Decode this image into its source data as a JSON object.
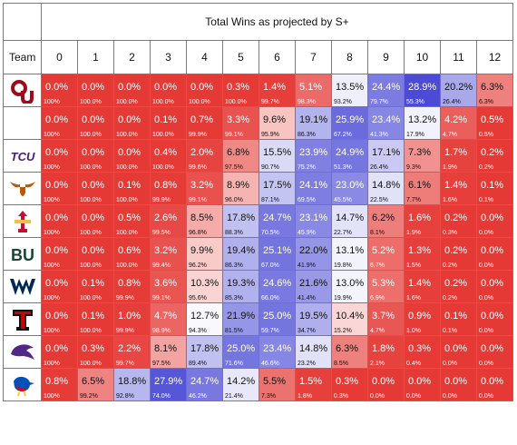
{
  "title": "Total Wins as projected by S+",
  "team_header": "Team",
  "win_columns": [
    "0",
    "1",
    "2",
    "3",
    "4",
    "5",
    "6",
    "7",
    "8",
    "9",
    "10",
    "11",
    "12"
  ],
  "rows": [
    {
      "logo": "oklahoma-ou-logo",
      "logo_text": "OU",
      "pct": [
        "0.0%",
        "0.0%",
        "0.0%",
        "0.0%",
        "0.0%",
        "0.3%",
        "1.4%",
        "5.1%",
        "13.5%",
        "24.4%",
        "28.9%",
        "20.2%",
        "6.3%"
      ],
      "cum": [
        "100%",
        "100.0%",
        "100.0%",
        "100.0%",
        "100.0%",
        "100.0%",
        "99.7%",
        "98.3%",
        "93.2%",
        "79.7%",
        "55.3%",
        "26.4%",
        "6.3%"
      ]
    },
    {
      "logo": "blank-logo",
      "logo_text": "",
      "pct": [
        "0.0%",
        "0.0%",
        "0.0%",
        "0.1%",
        "0.7%",
        "3.3%",
        "9.6%",
        "19.1%",
        "25.9%",
        "23.4%",
        "13.2%",
        "4.2%",
        "0.5%"
      ],
      "cum": [
        "100%",
        "100.0%",
        "100.0%",
        "100.0%",
        "99.9%",
        "99.1%",
        "95.9%",
        "86.3%",
        "67.2%",
        "41.3%",
        "17.9%",
        "4.7%",
        "0.5%"
      ]
    },
    {
      "logo": "tcu-logo",
      "logo_text": "TCU",
      "pct": [
        "0.0%",
        "0.0%",
        "0.0%",
        "0.4%",
        "2.0%",
        "6.8%",
        "15.5%",
        "23.9%",
        "24.9%",
        "17.1%",
        "7.3%",
        "1.7%",
        "0.2%"
      ],
      "cum": [
        "100%",
        "100.0%",
        "100.0%",
        "100.0%",
        "99.6%",
        "97.5%",
        "90.7%",
        "75.2%",
        "51.3%",
        "26.4%",
        "9.3%",
        "1.9%",
        "0.2%"
      ]
    },
    {
      "logo": "texas-longhorn-logo",
      "logo_text": "",
      "pct": [
        "0.0%",
        "0.0%",
        "0.1%",
        "0.8%",
        "3.2%",
        "8.9%",
        "17.5%",
        "24.1%",
        "23.0%",
        "14.8%",
        "6.1%",
        "1.4%",
        "0.1%"
      ],
      "cum": [
        "100%",
        "100.0%",
        "100.0%",
        "99.9%",
        "99.1%",
        "96.0%",
        "87.1%",
        "69.5%",
        "45.5%",
        "22.5%",
        "7.7%",
        "1.6%",
        "0.1%"
      ]
    },
    {
      "logo": "iowa-state-logo",
      "logo_text": "",
      "pct": [
        "0.0%",
        "0.0%",
        "0.5%",
        "2.6%",
        "8.5%",
        "17.8%",
        "24.7%",
        "23.1%",
        "14.7%",
        "6.2%",
        "1.6%",
        "0.2%",
        "0.0%"
      ],
      "cum": [
        "100%",
        "100.0%",
        "100.0%",
        "99.5%",
        "96.8%",
        "88.3%",
        "70.5%",
        "45.9%",
        "22.7%",
        "8.1%",
        "1.9%",
        "0.3%",
        "0.0%"
      ]
    },
    {
      "logo": "baylor-logo",
      "logo_text": "BU",
      "pct": [
        "0.0%",
        "0.0%",
        "0.6%",
        "3.2%",
        "9.9%",
        "19.4%",
        "25.1%",
        "22.0%",
        "13.1%",
        "5.2%",
        "1.3%",
        "0.2%",
        "0.0%"
      ],
      "cum": [
        "100%",
        "100.0%",
        "100.0%",
        "99.4%",
        "96.2%",
        "86.3%",
        "67.0%",
        "41.9%",
        "19.8%",
        "6.7%",
        "1.5%",
        "0.2%",
        "0.0%"
      ]
    },
    {
      "logo": "west-virginia-logo",
      "logo_text": "WV",
      "pct": [
        "0.0%",
        "0.1%",
        "0.8%",
        "3.6%",
        "10.3%",
        "19.3%",
        "24.6%",
        "21.6%",
        "13.0%",
        "5.3%",
        "1.4%",
        "0.2%",
        "0.0%"
      ],
      "cum": [
        "100%",
        "100.0%",
        "99.9%",
        "99.1%",
        "95.6%",
        "85.3%",
        "66.0%",
        "41.4%",
        "19.9%",
        "6.9%",
        "1.6%",
        "0.2%",
        "0.0%"
      ]
    },
    {
      "logo": "texas-tech-logo",
      "logo_text": "T",
      "pct": [
        "0.0%",
        "0.1%",
        "1.0%",
        "4.7%",
        "12.7%",
        "21.9%",
        "25.0%",
        "19.5%",
        "10.4%",
        "3.7%",
        "0.9%",
        "0.1%",
        "0.0%"
      ],
      "cum": [
        "100%",
        "100.0%",
        "99.9%",
        "98.9%",
        "94.3%",
        "81.5%",
        "59.7%",
        "34.7%",
        "15.2%",
        "4.7%",
        "1.0%",
        "0.1%",
        "0.0%"
      ]
    },
    {
      "logo": "kansas-state-logo",
      "logo_text": "",
      "pct": [
        "0.0%",
        "0.3%",
        "2.2%",
        "8.1%",
        "17.8%",
        "25.0%",
        "23.4%",
        "14.8%",
        "6.3%",
        "1.8%",
        "0.3%",
        "0.0%",
        "0.0%"
      ],
      "cum": [
        "100%",
        "100.0%",
        "99.7%",
        "97.5%",
        "89.4%",
        "71.6%",
        "46.6%",
        "23.2%",
        "8.5%",
        "2.1%",
        "0.4%",
        "0.0%",
        "0.0%"
      ]
    },
    {
      "logo": "kansas-jayhawk-logo",
      "logo_text": "",
      "pct": [
        "0.8%",
        "6.5%",
        "18.8%",
        "27.9%",
        "24.7%",
        "14.2%",
        "5.5%",
        "1.5%",
        "0.3%",
        "0.0%",
        "0.0%",
        "0.0%",
        "0.0%"
      ],
      "cum": [
        "100%",
        "99.2%",
        "92.8%",
        "74.0%",
        "46.2%",
        "21.4%",
        "7.3%",
        "1.8%",
        "0.3%",
        "0.0%",
        "0.0%",
        "0.0%",
        "0.0%"
      ]
    }
  ],
  "colors": {
    "red": "#e53935",
    "white": "#ffffff",
    "blue": "#4a4ad6",
    "ou_crimson": "#9d0a19",
    "tcu_purple": "#4d1979",
    "texas_orange": "#bf5700",
    "isu_cardinal": "#c8102e",
    "isu_gold": "#f1be48",
    "baylor_green": "#154734",
    "wvu_navy": "#002855",
    "ttu_black": "#111111",
    "ttu_red": "#cc0000",
    "ksu_purple": "#512888",
    "ku_blue": "#0051ba",
    "ku_red": "#e8000d",
    "ku_yellow": "#ffc82d"
  }
}
